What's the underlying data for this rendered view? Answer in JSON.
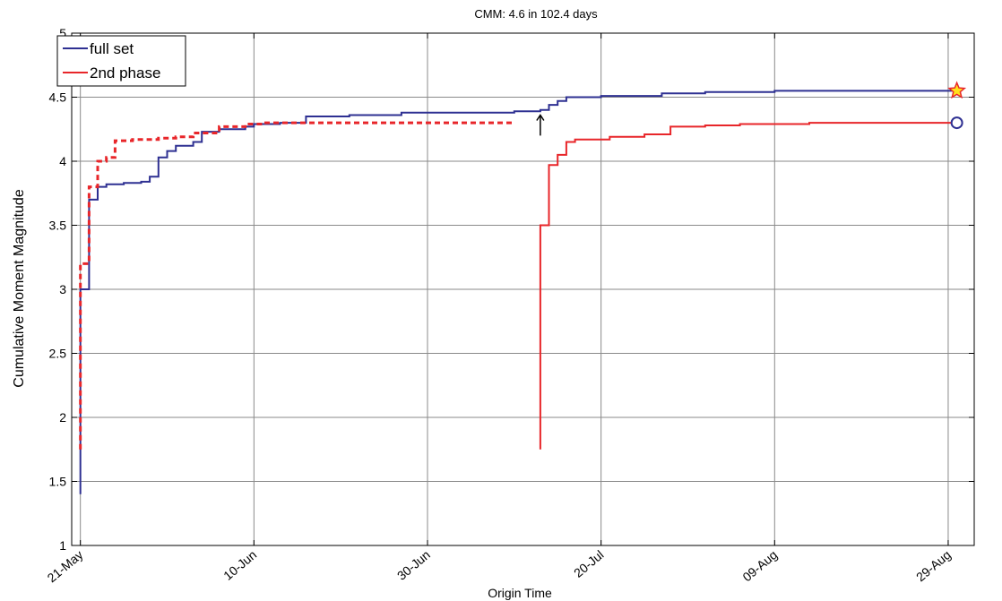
{
  "chart_data": {
    "type": "line",
    "title": "CMM: 4.6 in 102.4 days",
    "xlabel": "Origin Time",
    "ylabel": "Cumulative Moment Magnitude",
    "x_axis_type": "date",
    "xlim": [
      "2012-05-20",
      "2012-09-01"
    ],
    "ylim": [
      1,
      5
    ],
    "x_ticks": [
      {
        "date": "2012-05-21",
        "label": "21-May"
      },
      {
        "date": "2012-06-10",
        "label": "10-Jun"
      },
      {
        "date": "2012-06-30",
        "label": "30-Jun"
      },
      {
        "date": "2012-07-20",
        "label": "20-Jul"
      },
      {
        "date": "2012-08-09",
        "label": "09-Aug"
      },
      {
        "date": "2012-08-29",
        "label": "29-Aug"
      }
    ],
    "y_ticks": [
      1,
      1.5,
      2,
      2.5,
      3,
      3.5,
      4,
      4.5,
      5
    ],
    "y_tick_labels": [
      "1",
      "1.5",
      "2",
      "2.5",
      "3",
      "3.5",
      "4",
      "4.5",
      "5"
    ],
    "grid": true,
    "legend_position": "top-left",
    "series": [
      {
        "name": "full set",
        "color": "#2e3092",
        "style": "solid",
        "step": true,
        "points": [
          [
            "2012-05-21",
            1.4
          ],
          [
            "2012-05-21",
            2.6
          ],
          [
            "2012-05-21",
            3.0
          ],
          [
            "2012-05-22",
            3.3
          ],
          [
            "2012-05-22",
            3.55
          ],
          [
            "2012-05-22",
            3.7
          ],
          [
            "2012-05-23",
            3.8
          ],
          [
            "2012-05-24",
            3.82
          ],
          [
            "2012-05-26",
            3.83
          ],
          [
            "2012-05-28",
            3.84
          ],
          [
            "2012-05-29",
            3.88
          ],
          [
            "2012-05-30",
            4.03
          ],
          [
            "2012-05-31",
            4.08
          ],
          [
            "2012-06-01",
            4.12
          ],
          [
            "2012-06-03",
            4.15
          ],
          [
            "2012-06-04",
            4.23
          ],
          [
            "2012-06-06",
            4.25
          ],
          [
            "2012-06-09",
            4.27
          ],
          [
            "2012-06-10",
            4.29
          ],
          [
            "2012-06-13",
            4.3
          ],
          [
            "2012-06-16",
            4.35
          ],
          [
            "2012-06-21",
            4.36
          ],
          [
            "2012-06-27",
            4.38
          ],
          [
            "2012-07-02",
            4.38
          ],
          [
            "2012-07-10",
            4.39
          ],
          [
            "2012-07-13",
            4.4
          ],
          [
            "2012-07-14",
            4.44
          ],
          [
            "2012-07-15",
            4.47
          ],
          [
            "2012-07-16",
            4.5
          ],
          [
            "2012-07-20",
            4.51
          ],
          [
            "2012-07-27",
            4.53
          ],
          [
            "2012-08-01",
            4.54
          ],
          [
            "2012-08-09",
            4.55
          ],
          [
            "2012-08-30",
            4.55
          ]
        ]
      },
      {
        "name": "2nd phase",
        "color": "#e8262a",
        "style": "solid",
        "step": true,
        "points": [
          [
            "2012-07-13",
            1.75
          ],
          [
            "2012-07-13",
            2.7
          ],
          [
            "2012-07-13",
            3.1
          ],
          [
            "2012-07-13",
            3.5
          ],
          [
            "2012-07-14",
            3.7
          ],
          [
            "2012-07-14",
            3.9
          ],
          [
            "2012-07-14",
            3.97
          ],
          [
            "2012-07-15",
            4.05
          ],
          [
            "2012-07-16",
            4.15
          ],
          [
            "2012-07-17",
            4.17
          ],
          [
            "2012-07-21",
            4.19
          ],
          [
            "2012-07-25",
            4.21
          ],
          [
            "2012-07-28",
            4.27
          ],
          [
            "2012-08-01",
            4.28
          ],
          [
            "2012-08-05",
            4.29
          ],
          [
            "2012-08-13",
            4.3
          ],
          [
            "2012-08-30",
            4.3
          ]
        ]
      },
      {
        "color": "#e8262a",
        "style": "dashed",
        "step": true,
        "points": [
          [
            "2012-05-21",
            1.75
          ],
          [
            "2012-05-21",
            2.7
          ],
          [
            "2012-05-21",
            3.2
          ],
          [
            "2012-05-22",
            3.5
          ],
          [
            "2012-05-22",
            3.8
          ],
          [
            "2012-05-23",
            3.97
          ],
          [
            "2012-05-23",
            4.0
          ],
          [
            "2012-05-24",
            4.03
          ],
          [
            "2012-05-25",
            4.12
          ],
          [
            "2012-05-25",
            4.16
          ],
          [
            "2012-05-27",
            4.17
          ],
          [
            "2012-05-30",
            4.18
          ],
          [
            "2012-06-01",
            4.19
          ],
          [
            "2012-06-03",
            4.22
          ],
          [
            "2012-06-06",
            4.27
          ],
          [
            "2012-06-09",
            4.29
          ],
          [
            "2012-06-11",
            4.3
          ],
          [
            "2012-06-30",
            4.3
          ],
          [
            "2012-07-10",
            4.3
          ]
        ]
      }
    ],
    "markers": [
      {
        "type": "star",
        "date": "2012-08-30",
        "value": 4.55,
        "fill": "#ffe11a",
        "stroke": "#e8262a"
      },
      {
        "type": "circle",
        "date": "2012-08-30",
        "value": 4.3,
        "fill": "#ffffff",
        "stroke": "#2e3092"
      }
    ],
    "annotations": [
      {
        "type": "arrow",
        "date": "2012-07-13",
        "from_value": 4.2,
        "to_value": 4.36,
        "color": "#000000"
      }
    ]
  }
}
